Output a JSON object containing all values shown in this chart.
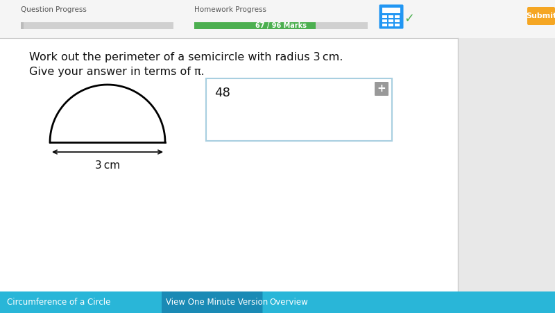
{
  "bg_color": "#f0f0f0",
  "main_bg": "#ffffff",
  "title_text1": "Work out the perimeter of a semicircle with radius 3 cm.",
  "title_text2": "Give your answer in terms of π.",
  "question_progress_label": "Question Progress",
  "homework_progress_label": "Homework Progress",
  "homework_progress_text": "67 / 96 Marks",
  "homework_bar_color": "#4caf50",
  "homework_bar_bg": "#d0d0d0",
  "question_bar_bg": "#d0d0d0",
  "answer_box_value": "48",
  "diameter_label": "3 cm",
  "submit_color": "#f5a623",
  "submit_text": "Submit",
  "bottom_tab1": "Circumference of a Circle",
  "bottom_tab2": "View One Minute Version",
  "bottom_tab3": "Overview",
  "bottom_bar_color": "#29b6d8",
  "bottom_tab2_color": "#1a8ab5",
  "right_panel_color": "#e8e8e8",
  "separator_color": "#cccccc",
  "calc_blue": "#2196F3",
  "check_green": "#4caf50"
}
